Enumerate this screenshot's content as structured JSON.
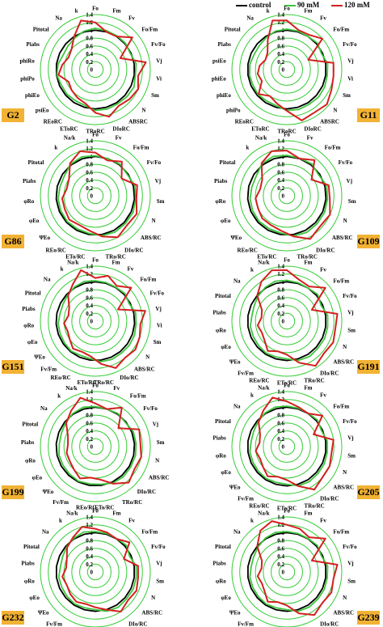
{
  "legend": [
    {
      "name": "control",
      "color": "#000000"
    },
    {
      "name": "90 mM",
      "color": "#3ec63e"
    },
    {
      "name": "120 mM",
      "color": "#d42020"
    }
  ],
  "colors": {
    "grid": "#33cc33",
    "label_bg": "#f2b233"
  },
  "radial_ticks": [
    "0",
    "0.2",
    "0.4",
    "0.6",
    "0.8",
    "1",
    "1.2",
    "1.4"
  ],
  "chart_data": [
    {
      "type": "radar",
      "label": "G2",
      "axes": [
        "Fo",
        "Fm",
        "Fv",
        "Fo/Fm",
        "Fv/Fo",
        "Vj",
        "Vi",
        "Sm",
        "N",
        "ABSRC",
        "DIoRC",
        "TRoRC",
        "EToRC",
        "REoRC",
        "psiEo",
        "phiEo",
        "phiPo",
        "phiRo",
        "Piabs",
        "Pitotal",
        "Na",
        "k"
      ],
      "rlim": [
        0,
        1.4
      ],
      "series": [
        {
          "name": "control",
          "values": [
            1,
            1,
            1,
            1,
            1,
            1,
            1,
            1,
            1,
            1,
            1,
            1,
            1,
            1,
            1,
            1,
            1,
            1,
            1,
            1,
            1,
            1
          ]
        },
        {
          "name": "90 mM",
          "values": [
            1.05,
            1.03,
            1.02,
            1.02,
            0.98,
            1.05,
            1.03,
            1.08,
            1.06,
            1.04,
            1.05,
            1.04,
            0.95,
            0.94,
            0.96,
            0.95,
            0.99,
            0.96,
            0.9,
            0.92,
            0.96,
            1.02
          ]
        },
        {
          "name": "120 mM",
          "values": [
            1.2,
            1.0,
            1.0,
            1.25,
            0.7,
            1.3,
            1.1,
            1.2,
            1.15,
            1.1,
            1.25,
            1.1,
            0.9,
            0.85,
            0.8,
            0.75,
            0.95,
            0.85,
            0.75,
            0.8,
            1.0,
            1.3
          ]
        }
      ]
    },
    {
      "type": "radar",
      "label": "G11",
      "axes": [
        "Fo",
        "Fm",
        "Fv",
        "Fo/Fm",
        "Fv/Fo",
        "Vj",
        "Vi",
        "Sm",
        "N",
        "ABSRC",
        "DIoRC",
        "TRoRC",
        "EToRC",
        "REoRC",
        "phiPo",
        "phiEo",
        "phiEo",
        "psiEo",
        "Piabs",
        "Pitotal",
        "Na",
        "k"
      ],
      "rlim": [
        0,
        1.4
      ],
      "series": [
        {
          "name": "control",
          "values": [
            1,
            1,
            1,
            1,
            1,
            1,
            1,
            1,
            1,
            1,
            1,
            1,
            1,
            1,
            1,
            1,
            1,
            1,
            1,
            1,
            1,
            1
          ]
        },
        {
          "name": "90 mM",
          "values": [
            1.03,
            1.02,
            1.0,
            1.03,
            0.97,
            1.05,
            1.04,
            1.06,
            1.07,
            1.05,
            1.06,
            1.04,
            0.96,
            0.95,
            0.97,
            0.95,
            0.96,
            0.95,
            0.92,
            0.93,
            0.97,
            1.02
          ]
        },
        {
          "name": "120 mM",
          "values": [
            1.25,
            1.05,
            1.05,
            1.2,
            0.6,
            1.2,
            1.2,
            1.25,
            1.35,
            1.3,
            1.35,
            1.05,
            0.9,
            0.8,
            0.95,
            0.7,
            0.75,
            0.7,
            0.6,
            0.65,
            0.9,
            1.3
          ]
        }
      ]
    },
    {
      "type": "radar",
      "label": "G86",
      "axes": [
        "Fo",
        "Fv",
        "Fo/Fm",
        "Fv/Fo",
        "Vj",
        "Sm",
        "N",
        "ABS/RC",
        "DIo/RC",
        "TRo/RC",
        "ETo/RC",
        "REo/RC",
        "ΨEo",
        "φEo",
        "φRo",
        "Piabs",
        "Pitotal",
        "k",
        "Na/k"
      ],
      "rlim": [
        0,
        1.4
      ],
      "series": [
        {
          "name": "control",
          "values": [
            1,
            1,
            1,
            1,
            1,
            1,
            1,
            1,
            1,
            1,
            1,
            1,
            1,
            1,
            1,
            1,
            1,
            1,
            1
          ]
        },
        {
          "name": "90 mM",
          "values": [
            1.02,
            1.0,
            1.02,
            0.98,
            1.04,
            1.03,
            1.05,
            1.04,
            1.05,
            1.03,
            0.97,
            0.96,
            0.97,
            0.96,
            0.95,
            0.93,
            0.94,
            1.02,
            1.05
          ]
        },
        {
          "name": "120 mM",
          "values": [
            1.1,
            0.95,
            1.1,
            0.8,
            1.1,
            1.05,
            1.15,
            1.1,
            1.2,
            1.05,
            0.9,
            0.85,
            0.9,
            0.85,
            0.85,
            0.75,
            0.8,
            1.05,
            1.2
          ]
        }
      ]
    },
    {
      "type": "radar",
      "label": "G109",
      "axes": [
        "Fo",
        "Fv",
        "Fo/Fm",
        "Fv/Fo",
        "Vj",
        "Sm",
        "N",
        "ABS/RC",
        "DIo/RC",
        "TRo/RC",
        "ETo/RC",
        "REo/RC",
        "ΨEo",
        "φEo",
        "φRo",
        "Piabs",
        "Pitotal",
        "k",
        "Na/k"
      ],
      "rlim": [
        0,
        1.4
      ],
      "series": [
        {
          "name": "control",
          "values": [
            1,
            1,
            1,
            1,
            1,
            1,
            1,
            1,
            1,
            1,
            1,
            1,
            1,
            1,
            1,
            1,
            1,
            1,
            1
          ]
        },
        {
          "name": "90 mM",
          "values": [
            1.03,
            1.01,
            1.03,
            0.97,
            1.05,
            1.04,
            1.05,
            1.05,
            1.06,
            1.04,
            0.96,
            0.95,
            0.96,
            0.95,
            0.94,
            0.92,
            0.93,
            1.03,
            1.06
          ]
        },
        {
          "name": "120 mM",
          "values": [
            1.15,
            1.0,
            1.15,
            0.75,
            1.1,
            1.1,
            1.2,
            1.15,
            1.25,
            1.05,
            0.9,
            0.85,
            0.85,
            0.8,
            0.8,
            0.7,
            0.75,
            1.05,
            1.2
          ]
        }
      ]
    },
    {
      "type": "radar",
      "label": "G151",
      "axes": [
        "Fo",
        "Fm",
        "Fv",
        "Fo/Fm",
        "Fv/Fo",
        "Vj",
        "Vi",
        "Sm",
        "N",
        "ABS/RC",
        "DIo/RC",
        "TRo/RC",
        "ETo/RC",
        "REo/RC",
        "Fv/Fm",
        "ΨEo",
        "φEo",
        "φRo",
        "Piabs",
        "Pitotal",
        "Na",
        "k",
        "Na/k"
      ],
      "rlim": [
        0,
        1.4
      ],
      "series": [
        {
          "name": "control",
          "values": [
            1,
            1,
            1,
            1,
            1,
            1,
            1,
            1,
            1,
            1,
            1,
            1,
            1,
            1,
            1,
            1,
            1,
            1,
            1,
            1,
            1,
            1,
            1
          ]
        },
        {
          "name": "90 mM",
          "values": [
            1.03,
            1.02,
            1.01,
            1.03,
            0.97,
            1.05,
            1.04,
            1.06,
            1.06,
            1.05,
            1.06,
            1.04,
            0.96,
            0.95,
            0.98,
            0.96,
            0.95,
            0.95,
            0.92,
            0.93,
            0.97,
            1.02,
            1.05
          ]
        },
        {
          "name": "120 mM",
          "values": [
            1.1,
            1.2,
            1.05,
            1.25,
            0.65,
            1.3,
            1.15,
            1.2,
            1.25,
            1.2,
            1.3,
            1.1,
            0.9,
            0.85,
            0.9,
            0.8,
            0.75,
            0.8,
            0.7,
            0.75,
            0.95,
            1.1,
            1.35
          ]
        }
      ]
    },
    {
      "type": "radar",
      "label": "G191",
      "axes": [
        "Fo",
        "Fm",
        "Fv",
        "Fo/Fm",
        "Fv/Fo",
        "Vj",
        "Sm",
        "N",
        "ABS/RC",
        "DIo/RC",
        "TRo/RC",
        "ETo/RC",
        "REo/RC",
        "Fv/Fm",
        "ΨEo",
        "φEo",
        "φRo",
        "Piabs",
        "Pitotal",
        "Na",
        "k",
        "Na/k"
      ],
      "rlim": [
        0,
        1.4
      ],
      "series": [
        {
          "name": "control",
          "values": [
            1,
            1,
            1,
            1,
            1,
            1,
            1,
            1,
            1,
            1,
            1,
            1,
            1,
            1,
            1,
            1,
            1,
            1,
            1,
            1,
            1,
            1
          ]
        },
        {
          "name": "90 mM",
          "values": [
            1.04,
            1.02,
            1.0,
            1.04,
            0.96,
            1.05,
            1.05,
            1.06,
            1.05,
            1.07,
            1.04,
            0.96,
            0.95,
            0.97,
            0.95,
            0.94,
            0.94,
            0.9,
            0.92,
            0.97,
            1.02,
            1.06
          ]
        },
        {
          "name": "120 mM",
          "values": [
            1.3,
            1.1,
            1.05,
            1.3,
            0.7,
            1.3,
            1.25,
            1.3,
            1.25,
            1.35,
            1.1,
            0.85,
            0.8,
            0.9,
            0.75,
            0.7,
            0.75,
            0.65,
            0.7,
            1.0,
            1.2,
            1.35
          ]
        }
      ]
    },
    {
      "type": "radar",
      "label": "G199",
      "axes": [
        "Fo",
        "Fv",
        "Fo/Fm",
        "Fv/Fo",
        "Vj",
        "Sm",
        "N",
        "ABS/RC",
        "DIo/RC",
        "TRo/RC",
        "ETo/RC",
        "REo/RC",
        "Fv/Fm",
        "ΨEo",
        "φEo",
        "φRo",
        "Piabs",
        "Pitotal",
        "Na",
        "k",
        "Na/k"
      ],
      "rlim": [
        0,
        1.4
      ],
      "series": [
        {
          "name": "control",
          "values": [
            1,
            1,
            1,
            1,
            1,
            1,
            1,
            1,
            1,
            1,
            1,
            1,
            1,
            1,
            1,
            1,
            1,
            1,
            1,
            1,
            1
          ]
        },
        {
          "name": "90 mM",
          "values": [
            1.02,
            1.0,
            1.02,
            0.98,
            1.04,
            1.04,
            1.05,
            1.04,
            1.05,
            1.03,
            0.97,
            0.96,
            0.98,
            0.96,
            0.95,
            0.95,
            0.92,
            0.93,
            0.97,
            1.02,
            1.05
          ]
        },
        {
          "name": "120 mM",
          "values": [
            1.1,
            1.0,
            1.2,
            0.75,
            1.2,
            1.15,
            1.2,
            1.15,
            1.25,
            1.05,
            0.85,
            0.8,
            0.9,
            0.8,
            0.75,
            0.75,
            0.7,
            0.75,
            0.95,
            1.1,
            1.3
          ]
        }
      ]
    },
    {
      "type": "radar",
      "label": "G205",
      "axes": [
        "Fo",
        "Fm",
        "Fv",
        "Fo/Fm",
        "Fv/Fo",
        "Vj",
        "Sm",
        "N",
        "ABS/RC",
        "DIo/RC",
        "TRo/RC",
        "ETo/RC",
        "REo/RC",
        "Fv/Fm",
        "ΨEo",
        "φEo",
        "φRo",
        "Piabs",
        "Pitotal",
        "Na",
        "k",
        "Na/k"
      ],
      "rlim": [
        0,
        1.4
      ],
      "series": [
        {
          "name": "control",
          "values": [
            1,
            1,
            1,
            1,
            1,
            1,
            1,
            1,
            1,
            1,
            1,
            1,
            1,
            1,
            1,
            1,
            1,
            1,
            1,
            1,
            1,
            1
          ]
        },
        {
          "name": "90 mM",
          "values": [
            1.03,
            1.02,
            1.01,
            1.03,
            0.97,
            1.04,
            1.04,
            1.05,
            1.05,
            1.06,
            1.04,
            0.96,
            0.95,
            0.97,
            0.96,
            0.95,
            0.95,
            0.92,
            0.93,
            0.97,
            1.02,
            1.05
          ]
        },
        {
          "name": "120 mM",
          "values": [
            1.15,
            1.05,
            1.0,
            1.2,
            0.75,
            1.2,
            1.15,
            1.2,
            1.2,
            1.3,
            1.05,
            0.85,
            0.8,
            0.9,
            0.8,
            0.75,
            0.8,
            0.7,
            0.75,
            0.95,
            1.1,
            1.3
          ]
        }
      ]
    },
    {
      "type": "radar",
      "label": "G232",
      "axes": [
        "F0",
        "Fm",
        "Fv",
        "Fo/Fm",
        "Fv/Fo",
        "Vj",
        "Sm",
        "N",
        "ABS/RC",
        "DIo/RC",
        "TRo/RC",
        "ETo/RC",
        "REo/RC",
        "Fv/Fm",
        "ΨEo",
        "φEo",
        "φRo",
        "Piabs",
        "Pitotal",
        "Na",
        "k",
        "Na/k"
      ],
      "rlim": [
        0,
        1.4
      ],
      "series": [
        {
          "name": "control",
          "values": [
            1,
            1,
            1,
            1,
            1,
            1,
            1,
            1,
            1,
            1,
            1,
            1,
            1,
            1,
            1,
            1,
            1,
            1,
            1,
            1,
            1,
            1
          ]
        },
        {
          "name": "90 mM",
          "values": [
            1.03,
            1.02,
            1.01,
            1.04,
            0.96,
            1.05,
            1.05,
            1.06,
            1.05,
            1.07,
            1.04,
            0.96,
            0.95,
            0.97,
            0.95,
            0.94,
            0.94,
            0.9,
            0.92,
            0.97,
            1.02,
            1.06
          ]
        },
        {
          "name": "120 mM",
          "values": [
            1.1,
            1.05,
            1.0,
            1.15,
            0.8,
            1.1,
            1.1,
            1.15,
            1.1,
            1.2,
            1.0,
            0.9,
            0.85,
            0.9,
            0.85,
            0.8,
            0.85,
            0.75,
            0.8,
            0.95,
            1.05,
            1.2
          ]
        }
      ]
    },
    {
      "type": "radar",
      "label": "G239",
      "axes": [
        "Fo",
        "Fm",
        "Fv",
        "Fo/Fm",
        "Fv/Fo",
        "Vj",
        "Sm",
        "N",
        "ABS/RC",
        "DIo/RC",
        "TRo/RC",
        "ETo/RC",
        "REo/RC",
        "Fv/Fm",
        "ΨEo",
        "φEo",
        "φRo",
        "Piabs",
        "Pitotal",
        "Na",
        "k",
        "Na/k"
      ],
      "rlim": [
        0,
        1.4
      ],
      "series": [
        {
          "name": "control",
          "values": [
            1,
            1,
            1,
            1,
            1,
            1,
            1,
            1,
            1,
            1,
            1,
            1,
            1,
            1,
            1,
            1,
            1,
            1,
            1,
            1,
            1,
            1
          ]
        },
        {
          "name": "90 mM",
          "values": [
            1.03,
            1.02,
            1.01,
            1.03,
            0.97,
            1.05,
            1.04,
            1.05,
            1.05,
            1.06,
            1.04,
            0.96,
            0.95,
            0.97,
            0.96,
            0.95,
            0.95,
            0.92,
            0.93,
            0.97,
            1.02,
            1.05
          ]
        },
        {
          "name": "120 mM",
          "values": [
            1.2,
            1.15,
            1.05,
            1.3,
            0.7,
            1.3,
            1.2,
            1.25,
            1.2,
            1.3,
            1.1,
            0.85,
            0.8,
            0.9,
            0.75,
            0.7,
            0.75,
            0.65,
            0.7,
            1.0,
            1.25,
            1.35
          ]
        }
      ]
    }
  ]
}
